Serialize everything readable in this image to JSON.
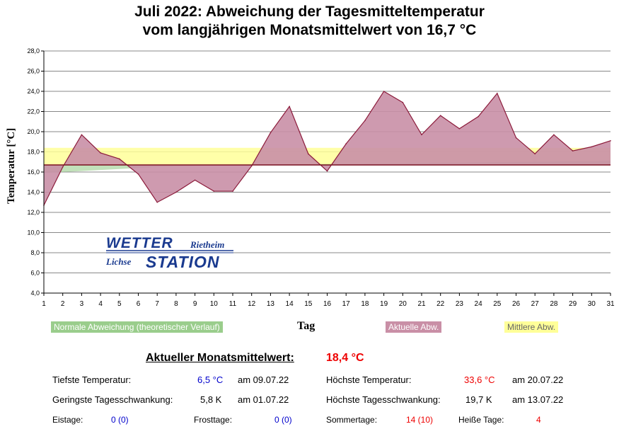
{
  "title_line1": "Juli 2022: Abweichung der Tagesmitteltemperatur",
  "title_line2": "vom langjährigen Monatsmittelwert von 16,7 °C",
  "chart_data": {
    "type": "area",
    "xlabel": "Tag",
    "ylabel": "Temperatur [°C]",
    "ylim": [
      4,
      28
    ],
    "xlim": [
      1,
      31
    ],
    "y_ticks": [
      "4,0",
      "6,0",
      "8,0",
      "10,0",
      "12,0",
      "14,0",
      "16,0",
      "18,0",
      "20,0",
      "22,0",
      "24,0",
      "26,0",
      "28,0"
    ],
    "x_ticks": [
      "1",
      "2",
      "3",
      "4",
      "5",
      "6",
      "7",
      "8",
      "9",
      "10",
      "11",
      "12",
      "13",
      "14",
      "15",
      "16",
      "17",
      "18",
      "19",
      "20",
      "21",
      "22",
      "23",
      "24",
      "25",
      "26",
      "27",
      "28",
      "29",
      "30",
      "31"
    ],
    "grid": true,
    "baseline": 16.7,
    "mean_value": 18.4,
    "days": [
      1,
      2,
      3,
      4,
      5,
      6,
      7,
      8,
      9,
      10,
      11,
      12,
      13,
      14,
      15,
      16,
      17,
      18,
      19,
      20,
      21,
      22,
      23,
      24,
      25,
      26,
      27,
      28,
      29,
      30,
      31
    ],
    "values": [
      12.7,
      16.5,
      19.7,
      17.9,
      17.3,
      15.8,
      13.0,
      14.0,
      15.2,
      14.1,
      14.1,
      16.6,
      19.9,
      22.5,
      17.8,
      16.1,
      18.8,
      21.1,
      24.0,
      22.9,
      19.7,
      21.6,
      20.3,
      21.5,
      23.8,
      19.4,
      17.8,
      19.7,
      18.1,
      18.5,
      19.1
    ],
    "normal_curve": [
      15.9,
      16.0,
      16.1,
      16.2,
      16.3,
      16.4,
      16.5,
      16.55,
      16.6,
      16.65,
      16.7,
      16.72,
      16.74,
      16.76,
      16.78,
      16.8,
      16.82,
      16.84,
      16.86,
      16.88,
      16.9,
      16.92,
      16.94,
      16.96,
      16.98,
      17.0,
      17.02,
      17.04,
      17.06,
      17.08,
      17.1
    ],
    "legend": [
      {
        "name": "Normale Abweichung (theoretischer Verlauf)",
        "color": "#9acd8c"
      },
      {
        "name": "Aktuelle Abw.",
        "color": "#c98fa6"
      },
      {
        "name": "Mittlere Abw.",
        "color": "#ffff99"
      }
    ]
  },
  "logo": {
    "line1": "WETTER",
    "line1b": "Rietheim",
    "line2a": "Lichse",
    "line2": "STATION"
  },
  "stats": {
    "mean_label": "Aktueller Monatsmittelwert:",
    "mean_value": "18,4 °C",
    "min_temp_label": "Tiefste Temperatur:",
    "min_temp_value": "6,5 °C",
    "min_temp_date": "am 09.07.22",
    "max_temp_label": "Höchste Temperatur:",
    "max_temp_value": "33,6 °C",
    "max_temp_date": "am 20.07.22",
    "min_swing_label": "Geringste Tagesschwankung:",
    "min_swing_value": "5,8 K",
    "min_swing_date": "am 01.07.22",
    "max_swing_label": "Höchste Tagesschwankung:",
    "max_swing_value": "19,7 K",
    "max_swing_date": "am 13.07.22",
    "ice_label": "Eistage:",
    "ice_value": "0 (0)",
    "frost_label": "Frosttage:",
    "frost_value": "0 (0)",
    "summer_label": "Sommertage:",
    "summer_value": "14 (10)",
    "hot_label": "Heiße Tage:",
    "hot_value": "4"
  },
  "colors": {
    "actual_fill": "#c98fa6",
    "actual_line": "#8b1a3a",
    "normal_fill": "#9acd8c",
    "mean_band": "#ffff99",
    "baseline": "#7a1020"
  }
}
